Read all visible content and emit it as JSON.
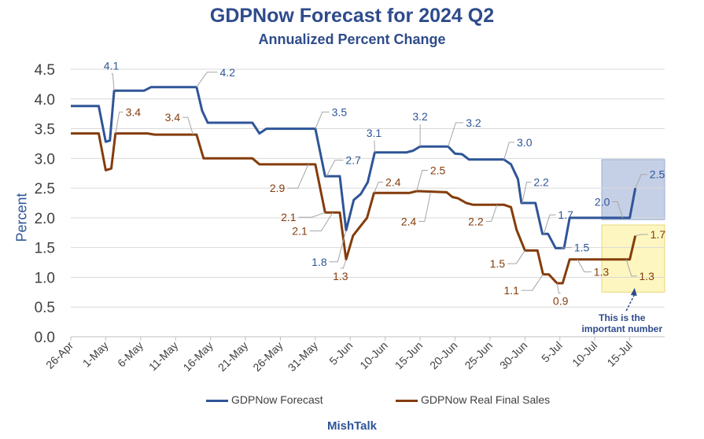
{
  "chart_data": {
    "type": "line",
    "title": "GDPNow Forecast for 2024 Q2",
    "subtitle": "Annualized Percent Change",
    "ylabel": "Percent",
    "xlabel": "",
    "ylim": [
      0,
      4.5
    ],
    "yticks": [
      "0.0",
      "0.5",
      "1.0",
      "1.5",
      "2.0",
      "2.5",
      "3.0",
      "3.5",
      "4.0",
      "4.5"
    ],
    "xlim": [
      0,
      85
    ],
    "xticks": [
      {
        "x": 0,
        "label": "26-Apr"
      },
      {
        "x": 5,
        "label": "1-May"
      },
      {
        "x": 10,
        "label": "6-May"
      },
      {
        "x": 15,
        "label": "11-May"
      },
      {
        "x": 20,
        "label": "16-May"
      },
      {
        "x": 25,
        "label": "21-May"
      },
      {
        "x": 30,
        "label": "26-May"
      },
      {
        "x": 35,
        "label": "31-May"
      },
      {
        "x": 40,
        "label": "5-Jun"
      },
      {
        "x": 45,
        "label": "10-Jun"
      },
      {
        "x": 50,
        "label": "15-Jun"
      },
      {
        "x": 55,
        "label": "20-Jun"
      },
      {
        "x": 60,
        "label": "25-Jun"
      },
      {
        "x": 65,
        "label": "30-Jun"
      },
      {
        "x": 70,
        "label": "5-Jul"
      },
      {
        "x": 75,
        "label": "10-Jul"
      },
      {
        "x": 80,
        "label": "15-Jul"
      }
    ],
    "grid": true,
    "legend_position": "bottom",
    "series": [
      {
        "name": "GDPNow Forecast",
        "color": "#2f5597",
        "points": [
          [
            0,
            3.88
          ],
          [
            4,
            3.88
          ],
          [
            5,
            3.28
          ],
          [
            5.6,
            3.3
          ],
          [
            6.2,
            4.14
          ],
          [
            10.5,
            4.14
          ],
          [
            11.5,
            4.2
          ],
          [
            18,
            4.2
          ],
          [
            18.8,
            3.8
          ],
          [
            19.6,
            3.6
          ],
          [
            26,
            3.6
          ],
          [
            27,
            3.42
          ],
          [
            28,
            3.5
          ],
          [
            35,
            3.5
          ],
          [
            36.4,
            2.7
          ],
          [
            38.5,
            2.7
          ],
          [
            39.4,
            1.79
          ],
          [
            40.5,
            2.3
          ],
          [
            41.5,
            2.4
          ],
          [
            42.5,
            2.6
          ],
          [
            43.5,
            3.1
          ],
          [
            48,
            3.1
          ],
          [
            49,
            3.13
          ],
          [
            50,
            3.2
          ],
          [
            54,
            3.2
          ],
          [
            55,
            3.08
          ],
          [
            56,
            3.07
          ],
          [
            57,
            2.98
          ],
          [
            62,
            2.98
          ],
          [
            63,
            2.9
          ],
          [
            64,
            2.65
          ],
          [
            64.5,
            2.25
          ],
          [
            66.5,
            2.25
          ],
          [
            67.5,
            1.73
          ],
          [
            68.3,
            1.73
          ],
          [
            69.4,
            1.49
          ],
          [
            70.6,
            1.49
          ],
          [
            71.4,
            2.0
          ],
          [
            80,
            2.0
          ],
          [
            80.8,
            2.5
          ]
        ]
      },
      {
        "name": "GDPNow Real Final Sales",
        "color": "#843c0c",
        "points": [
          [
            0,
            3.42
          ],
          [
            4,
            3.42
          ],
          [
            5,
            2.8
          ],
          [
            5.8,
            2.83
          ],
          [
            6.4,
            3.42
          ],
          [
            11,
            3.42
          ],
          [
            12,
            3.4
          ],
          [
            18,
            3.4
          ],
          [
            19,
            3.0
          ],
          [
            26,
            3.0
          ],
          [
            27,
            2.9
          ],
          [
            35,
            2.9
          ],
          [
            36.4,
            2.09
          ],
          [
            38.5,
            2.09
          ],
          [
            39.4,
            1.3
          ],
          [
            40.4,
            1.7
          ],
          [
            41.4,
            1.85
          ],
          [
            42.4,
            2.0
          ],
          [
            43.4,
            2.42
          ],
          [
            48.5,
            2.42
          ],
          [
            49.5,
            2.45
          ],
          [
            53.8,
            2.43
          ],
          [
            54.6,
            2.35
          ],
          [
            55.4,
            2.33
          ],
          [
            56.6,
            2.25
          ],
          [
            57.6,
            2.22
          ],
          [
            62,
            2.22
          ],
          [
            63,
            2.18
          ],
          [
            63.8,
            1.8
          ],
          [
            65,
            1.45
          ],
          [
            66.8,
            1.45
          ],
          [
            67.6,
            1.05
          ],
          [
            68.4,
            1.05
          ],
          [
            69.6,
            0.9
          ],
          [
            70.4,
            0.9
          ],
          [
            71.4,
            1.3
          ],
          [
            80,
            1.3
          ],
          [
            80.8,
            1.7
          ]
        ]
      }
    ],
    "annotations": [
      {
        "series": 0,
        "text": "4.1",
        "x": 6.2,
        "y": 4.14,
        "lx": 5.8,
        "ly": 4.53,
        "side": "up"
      },
      {
        "series": 0,
        "text": "4.2",
        "x": 18,
        "y": 4.2,
        "lx": 21.0,
        "ly": 4.45,
        "side": "right"
      },
      {
        "series": 0,
        "text": "3.5",
        "x": 35,
        "y": 3.5,
        "lx": 37.0,
        "ly": 3.78,
        "side": "right"
      },
      {
        "series": 0,
        "text": "2.7",
        "x": 36.6,
        "y": 2.7,
        "lx": 39.0,
        "ly": 2.97,
        "side": "right"
      },
      {
        "series": 0,
        "text": "1.8",
        "x": 39.4,
        "y": 1.79,
        "lx": 37.0,
        "ly": 1.26,
        "side": "left"
      },
      {
        "series": 0,
        "text": "3.1",
        "x": 43.5,
        "y": 3.1,
        "lx": 43.4,
        "ly": 3.4,
        "side": "up"
      },
      {
        "series": 0,
        "text": "3.2",
        "x": 50,
        "y": 3.2,
        "lx": 50.0,
        "ly": 3.68,
        "side": "up"
      },
      {
        "series": 0,
        "text": "3.2",
        "x": 54,
        "y": 3.2,
        "lx": 56.2,
        "ly": 3.6,
        "side": "right"
      },
      {
        "series": 0,
        "text": "3.0",
        "x": 62,
        "y": 2.98,
        "lx": 63.5,
        "ly": 3.27,
        "side": "right"
      },
      {
        "series": 0,
        "text": "2.2",
        "x": 64.6,
        "y": 2.25,
        "lx": 65.9,
        "ly": 2.6,
        "side": "right"
      },
      {
        "series": 0,
        "text": "1.7",
        "x": 67.7,
        "y": 1.73,
        "lx": 69.4,
        "ly": 2.05,
        "side": "right"
      },
      {
        "series": 0,
        "text": "1.5",
        "x": 70.2,
        "y": 1.49,
        "lx": 71.7,
        "ly": 1.5,
        "side": "right"
      },
      {
        "series": 0,
        "text": "2.0",
        "x": 79,
        "y": 2.0,
        "lx": 77.5,
        "ly": 2.27,
        "side": "left"
      },
      {
        "series": 0,
        "text": "2.5",
        "x": 80.8,
        "y": 2.5,
        "lx": 82.5,
        "ly": 2.73,
        "side": "right"
      },
      {
        "series": 1,
        "text": "3.4",
        "x": 6.4,
        "y": 3.42,
        "lx": 7.5,
        "ly": 3.78,
        "side": "right"
      },
      {
        "series": 1,
        "text": "3.4",
        "x": 17.5,
        "y": 3.4,
        "lx": 16.0,
        "ly": 3.69,
        "side": "left"
      },
      {
        "series": 1,
        "text": "2.9",
        "x": 34,
        "y": 2.9,
        "lx": 31.0,
        "ly": 2.5,
        "side": "left"
      },
      {
        "series": 1,
        "text": "2.1",
        "x": 36.4,
        "y": 2.09,
        "lx": 32.6,
        "ly": 2.01,
        "side": "left"
      },
      {
        "series": 1,
        "text": "2.1",
        "x": 37.5,
        "y": 2.09,
        "lx": 34.2,
        "ly": 1.78,
        "side": "left"
      },
      {
        "series": 1,
        "text": "1.3",
        "x": 39.4,
        "y": 1.3,
        "lx": 38.6,
        "ly": 1.02,
        "side": "down"
      },
      {
        "series": 1,
        "text": "2.4",
        "x": 43.4,
        "y": 2.42,
        "lx": 44.7,
        "ly": 2.6,
        "side": "right"
      },
      {
        "series": 1,
        "text": "2.5",
        "x": 49.5,
        "y": 2.45,
        "lx": 51.1,
        "ly": 2.8,
        "side": "right"
      },
      {
        "series": 1,
        "text": "2.4",
        "x": 51.5,
        "y": 2.43,
        "lx": 49.8,
        "ly": 1.94,
        "side": "left"
      },
      {
        "series": 1,
        "text": "2.2",
        "x": 61,
        "y": 2.22,
        "lx": 59.4,
        "ly": 1.94,
        "side": "left"
      },
      {
        "series": 1,
        "text": "1.5",
        "x": 65,
        "y": 1.45,
        "lx": 62.5,
        "ly": 1.23,
        "side": "left"
      },
      {
        "series": 1,
        "text": "1.1",
        "x": 67.6,
        "y": 1.05,
        "lx": 64.5,
        "ly": 0.78,
        "side": "left"
      },
      {
        "series": 1,
        "text": "0.9",
        "x": 69.6,
        "y": 0.9,
        "lx": 70.1,
        "ly": 0.6,
        "side": "down"
      },
      {
        "series": 1,
        "text": "1.3",
        "x": 72.5,
        "y": 1.3,
        "lx": 74.5,
        "ly": 1.09,
        "side": "right"
      },
      {
        "series": 1,
        "text": "1.3",
        "x": 79.5,
        "y": 1.3,
        "lx": 81.0,
        "ly": 1.02,
        "side": "right"
      },
      {
        "series": 1,
        "text": "1.7",
        "x": 80.8,
        "y": 1.7,
        "lx": 82.6,
        "ly": 1.72,
        "side": "right"
      }
    ],
    "highlight_boxes": [
      {
        "name": "forecast-highlight-box",
        "x0": 76.0,
        "x1": 85.0,
        "y0": 1.97,
        "y1": 2.98,
        "fill": "#c5d0e6",
        "stroke": "#9aaed4"
      },
      {
        "name": "final-sales-highlight-box",
        "x0": 76.0,
        "x1": 85.0,
        "y0": 0.75,
        "y1": 1.88,
        "fill": "#fdf6c0",
        "stroke": "#e8d87a"
      }
    ],
    "callout": {
      "line1": "This is the",
      "line2": "important number",
      "color": "#2e4b8b"
    },
    "footer": "MishTalk"
  }
}
